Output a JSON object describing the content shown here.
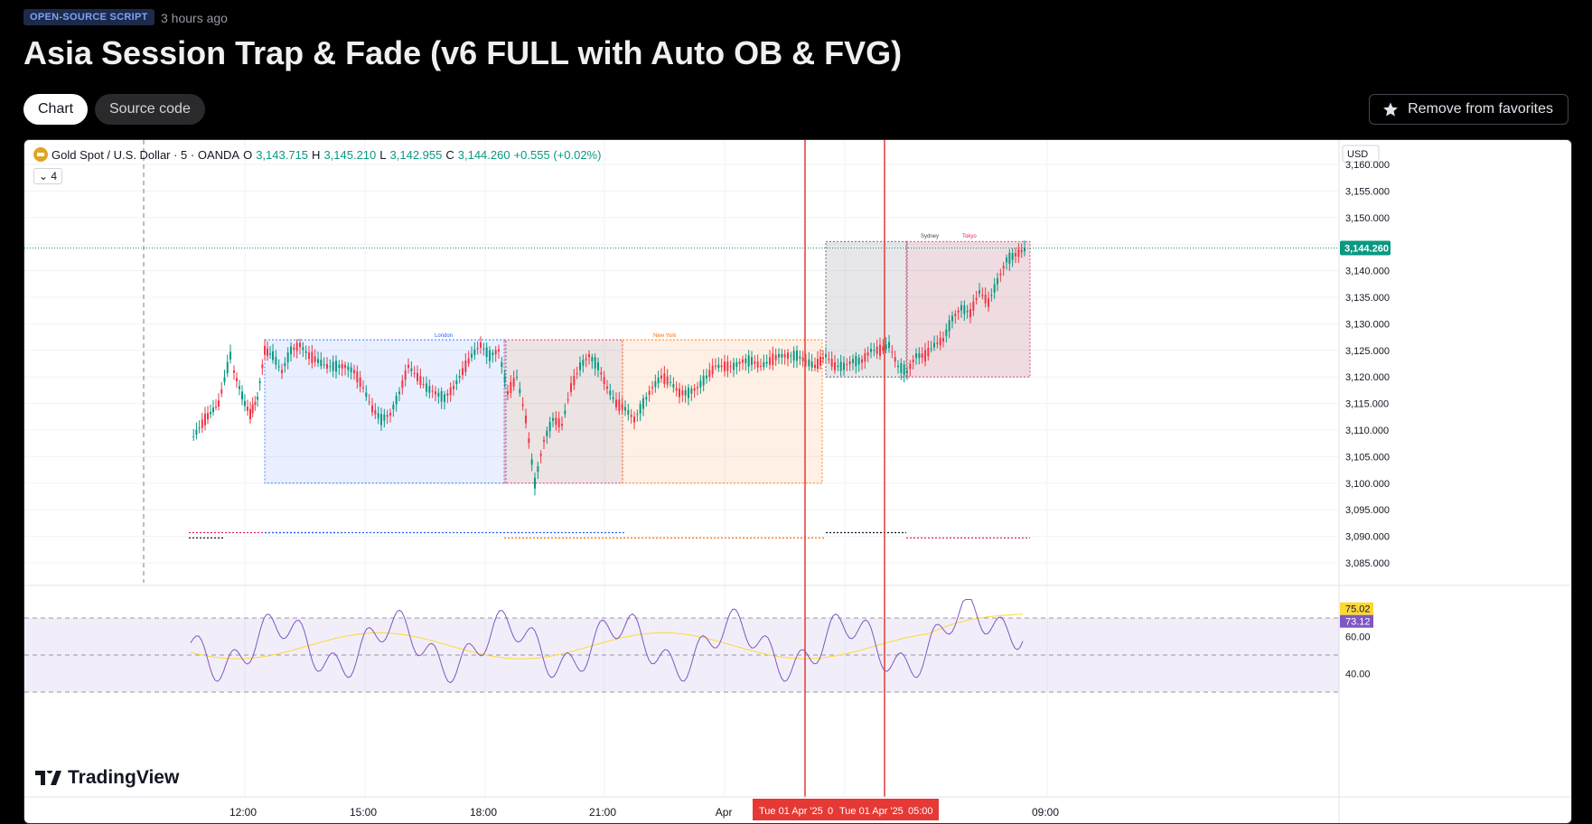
{
  "header": {
    "badge": "OPEN-SOURCE SCRIPT",
    "time_ago": "3 hours ago",
    "title": "Asia Session Trap & Fade (v6 FULL with Auto OB & FVG)",
    "tabs": [
      "Chart",
      "Source code"
    ],
    "favorite_label": "Remove from favorites"
  },
  "chart": {
    "symbol": "Gold Spot / U.S. Dollar · 5 · OANDA",
    "ohlc": {
      "o_label": "O",
      "o": "3,143.715",
      "h_label": "H",
      "h": "3,145.210",
      "l_label": "L",
      "l": "3,142.955",
      "c_label": "C",
      "c": "3,144.260",
      "change": "+0.555 (+0.02%)"
    },
    "collapsed_count": "4",
    "currency": "USD",
    "last_price": "3,144.260",
    "price_axis": [
      "3,160.000",
      "3,155.000",
      "3,150.000",
      "3,145.000",
      "3,140.000",
      "3,135.000",
      "3,130.000",
      "3,125.000",
      "3,120.000",
      "3,115.000",
      "3,110.000",
      "3,105.000",
      "3,100.000",
      "3,095.000",
      "3,090.000",
      "3,085.000"
    ],
    "rsi_axis": [
      "60.00",
      "40.00"
    ],
    "rsi_badges": [
      "75.02",
      "73.12"
    ],
    "time_axis": [
      "12:00",
      "15:00",
      "18:00",
      "21:00",
      "Apr",
      "09:00"
    ],
    "crosshair_labels": [
      "Tue 01 Apr '25",
      "0",
      "Tue 01 Apr '25",
      "05:00"
    ],
    "sessions": [
      "London",
      "New York",
      "Sydney",
      "Tokyo"
    ],
    "brand": "TradingView",
    "colors": {
      "up": "#089981",
      "down": "#f23645",
      "london": "#2962ff",
      "newyork": "#ff6d00",
      "sydney": "#787b86",
      "tokyo": "#e91e63",
      "rsi": "#7e57c2",
      "rsi_ma": "#fdd835",
      "crosshair": "#e53935"
    }
  },
  "chart_data": {
    "type": "candlestick",
    "currency": "USD",
    "last_close": 3144.26,
    "price_range": [
      3082,
      3162
    ],
    "session_boxes": [
      {
        "name": "London",
        "high": 3127,
        "low": 3100
      },
      {
        "name": "New York",
        "high": 3127,
        "low": 3100
      },
      {
        "name": "Sydney",
        "high": 3145,
        "low": 3120
      },
      {
        "name": "Tokyo",
        "high": 3145,
        "low": 3120
      }
    ],
    "rsi": {
      "levels": [
        70,
        50,
        30
      ],
      "last": 73.12,
      "ma_last": 75.02
    }
  }
}
